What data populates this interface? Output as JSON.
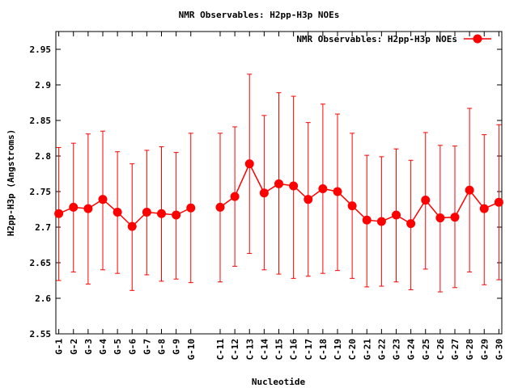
{
  "chart_data": {
    "type": "line",
    "title": "NMR Observables: H2pp-H3p NOEs",
    "xlabel": "Nucleotide",
    "ylabel": "H2pp-H3p (Angstroms)",
    "ylim": [
      2.55,
      2.975
    ],
    "yticks": [
      "2.55",
      "2.6",
      "2.65",
      "2.7",
      "2.75",
      "2.8",
      "2.85",
      "2.9",
      "2.95"
    ],
    "categories": [
      "G-1",
      "G-2",
      "G-3",
      "G-4",
      "G-5",
      "G-6",
      "G-7",
      "G-8",
      "G-9",
      "G-10",
      "C-11",
      "C-12",
      "C-13",
      "C-14",
      "C-15",
      "C-16",
      "C-17",
      "C-18",
      "C-19",
      "C-20",
      "G-21",
      "G-22",
      "G-23",
      "G-24",
      "G-25",
      "C-26",
      "G-27",
      "G-28",
      "G-29",
      "G-30"
    ],
    "x": [
      1,
      2,
      3,
      4,
      5,
      6,
      7,
      8,
      9,
      10,
      12,
      13,
      14,
      15,
      16,
      17,
      18,
      19,
      20,
      21,
      22,
      23,
      24,
      25,
      26,
      27,
      28,
      29,
      30,
      31
    ],
    "xlim": [
      0.8,
      31.2
    ],
    "legend_position": "top-right",
    "line_break_after_index": 9,
    "color": "#ff0000",
    "series": [
      {
        "name": "NMR Observables: H2pp-H3p NOEs",
        "values": [
          2.719,
          2.728,
          2.726,
          2.739,
          2.721,
          2.701,
          2.721,
          2.719,
          2.717,
          2.727,
          2.728,
          2.743,
          2.789,
          2.748,
          2.761,
          2.758,
          2.739,
          2.754,
          2.75,
          2.73,
          2.71,
          2.708,
          2.717,
          2.705,
          2.738,
          2.713,
          2.714,
          2.752,
          2.726,
          2.735
        ],
        "err_low": [
          2.625,
          2.637,
          2.62,
          2.64,
          2.635,
          2.611,
          2.633,
          2.624,
          2.627,
          2.622,
          2.623,
          2.645,
          2.663,
          2.64,
          2.634,
          2.628,
          2.631,
          2.635,
          2.639,
          2.628,
          2.616,
          2.617,
          2.623,
          2.612,
          2.641,
          2.609,
          2.615,
          2.637,
          2.619,
          2.626
        ],
        "err_high": [
          2.812,
          2.818,
          2.831,
          2.835,
          2.806,
          2.789,
          2.808,
          2.813,
          2.805,
          2.832,
          2.832,
          2.841,
          2.915,
          2.857,
          2.889,
          2.884,
          2.847,
          2.873,
          2.859,
          2.832,
          2.801,
          2.799,
          2.81,
          2.794,
          2.833,
          2.815,
          2.814,
          2.867,
          2.83,
          2.844
        ]
      }
    ]
  }
}
